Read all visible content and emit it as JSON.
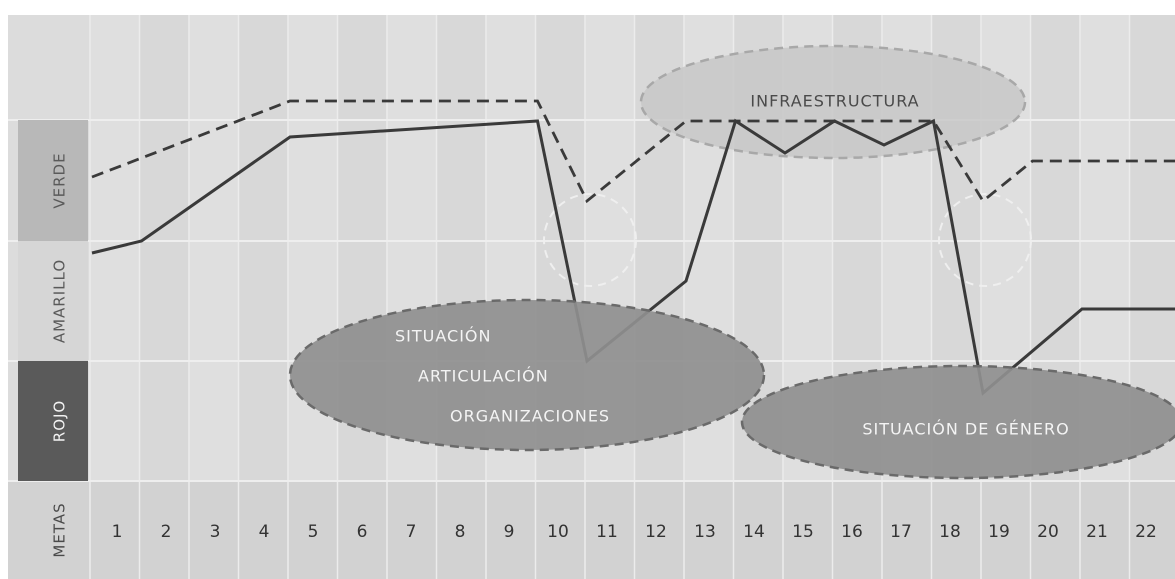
{
  "chart_data": {
    "type": "line",
    "xlabel": "METAS",
    "x": [
      1,
      2,
      3,
      4,
      5,
      6,
      7,
      8,
      9,
      10,
      11,
      12,
      13,
      14,
      15,
      16,
      17,
      18,
      19,
      20,
      21,
      22
    ],
    "x_tick_labels": [
      "1",
      "2",
      "3",
      "4",
      "5",
      "6",
      "7",
      "8",
      "9",
      "10",
      "11",
      "12",
      "13",
      "14",
      "15",
      "16",
      "17",
      "18",
      "19",
      "20",
      "21",
      "22"
    ],
    "bands": [
      {
        "label": "VERDE",
        "color": "#b8b8b8"
      },
      {
        "label": "AMARILLO",
        "color": "#d6d6d6"
      },
      {
        "label": "ROJO",
        "color": "#5a5a5a"
      }
    ],
    "ylim": [
      0,
      3
    ],
    "series": [
      {
        "style": "solid",
        "points": [
          [
            0,
            1.35
          ],
          [
            1,
            1.5
          ],
          [
            4,
            2.8
          ],
          [
            9,
            3.0
          ],
          [
            10,
            0.0
          ],
          [
            12,
            1.0
          ],
          [
            13,
            3.0
          ],
          [
            14,
            2.6
          ],
          [
            15,
            3.0
          ],
          [
            16,
            2.7
          ],
          [
            17,
            3.0
          ],
          [
            18,
            -0.4
          ],
          [
            20,
            0.65
          ],
          [
            22,
            0.65
          ]
        ]
      },
      {
        "style": "dashed",
        "points": [
          [
            0,
            2.3
          ],
          [
            4,
            3.25
          ],
          [
            9,
            3.25
          ],
          [
            10,
            2.0
          ],
          [
            12,
            3.0
          ],
          [
            17,
            3.0
          ],
          [
            18,
            2.0
          ],
          [
            19,
            2.5
          ],
          [
            22,
            2.5
          ]
        ]
      }
    ],
    "annotations": [
      {
        "lines": [
          "INFRAESTRUCTURA"
        ],
        "fill": "#c8c8c8"
      },
      {
        "lines": [
          "SITUACIÓN",
          "ARTICULACIÓN",
          "ORGANIZACIONES"
        ],
        "fill": "#8f8f8f"
      },
      {
        "lines": [
          "SITUACIÓN DE GÉNERO"
        ],
        "fill": "#8f8f8f"
      }
    ]
  }
}
